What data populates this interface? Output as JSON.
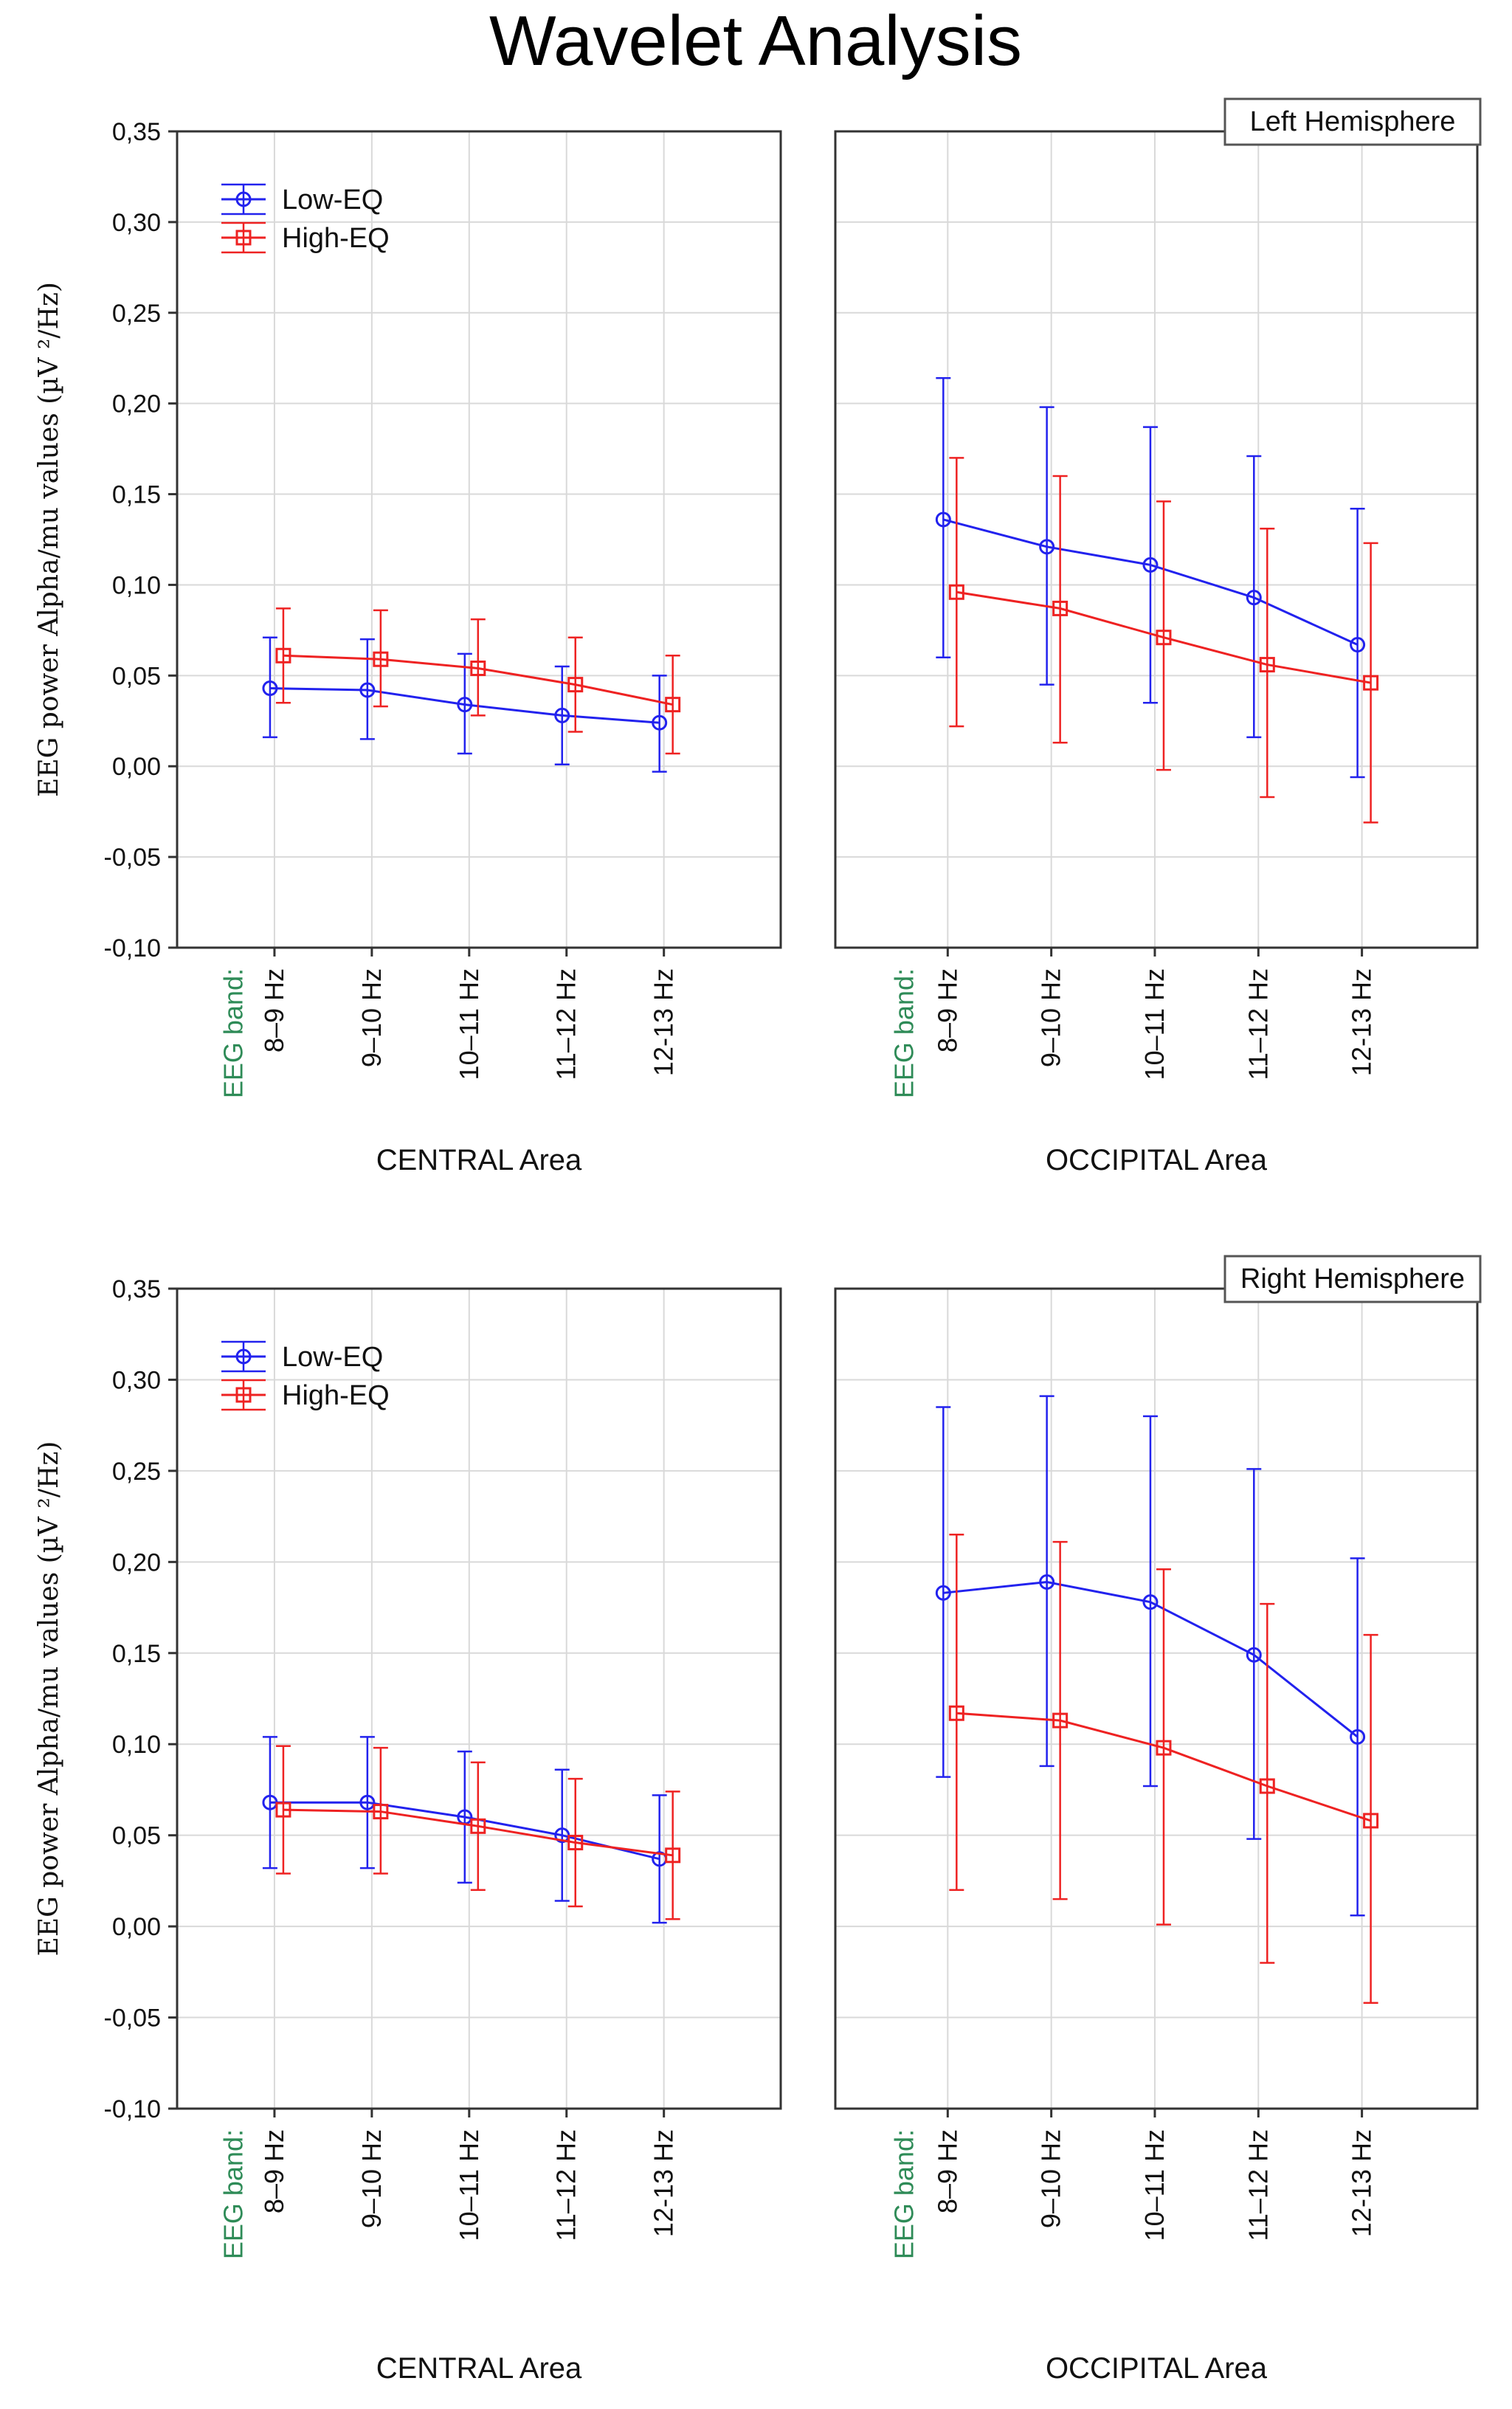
{
  "title": "Wavelet Analysis",
  "y_axis_label": "EEG power Alpha/mu values (µV ²/Hz)",
  "band_label": "EEG band:",
  "legend": {
    "low": "Low-EQ",
    "high": "High-EQ"
  },
  "colors": {
    "low": "#2222ee",
    "high": "#ee2222",
    "grid": "#d9d9d9",
    "axis": "#333333"
  },
  "y_tick_labels": [
    "0,35",
    "0,30",
    "0,25",
    "0,20",
    "0,15",
    "0,10",
    "0,05",
    "0,00",
    "-0,05",
    "-0,10"
  ],
  "chart_data": [
    {
      "type": "line",
      "panel": "left-hemisphere-central",
      "xlabel": "CENTRAL Area",
      "ylim": [
        -0.1,
        0.35
      ],
      "categories": [
        "8–9 Hz",
        "9–10 Hz",
        "10–11 Hz",
        "11–12 Hz",
        "12-13 Hz"
      ],
      "series": [
        {
          "name": "Low-EQ",
          "values": [
            0.043,
            0.042,
            0.034,
            0.028,
            0.024
          ],
          "lower": [
            0.016,
            0.015,
            0.007,
            0.001,
            -0.003
          ],
          "upper": [
            0.071,
            0.07,
            0.062,
            0.055,
            0.05
          ]
        },
        {
          "name": "High-EQ",
          "values": [
            0.061,
            0.059,
            0.054,
            0.045,
            0.034
          ],
          "lower": [
            0.035,
            0.033,
            0.028,
            0.019,
            0.007
          ],
          "upper": [
            0.087,
            0.086,
            0.081,
            0.071,
            0.061
          ]
        }
      ]
    },
    {
      "type": "line",
      "panel": "left-hemisphere-occipital",
      "xlabel": "OCCIPITAL Area",
      "hemisphere": "Left Hemisphere",
      "ylim": [
        -0.1,
        0.35
      ],
      "categories": [
        "8–9 Hz",
        "9–10 Hz",
        "10–11 Hz",
        "11–12 Hz",
        "12-13 Hz"
      ],
      "series": [
        {
          "name": "Low-EQ",
          "values": [
            0.136,
            0.121,
            0.111,
            0.093,
            0.067
          ],
          "lower": [
            0.06,
            0.045,
            0.035,
            0.016,
            -0.006
          ],
          "upper": [
            0.214,
            0.198,
            0.187,
            0.171,
            0.142
          ]
        },
        {
          "name": "High-EQ",
          "values": [
            0.096,
            0.087,
            0.071,
            0.056,
            0.046
          ],
          "lower": [
            0.022,
            0.013,
            -0.002,
            -0.017,
            -0.031
          ],
          "upper": [
            0.17,
            0.16,
            0.146,
            0.131,
            0.123
          ]
        }
      ]
    },
    {
      "type": "line",
      "panel": "right-hemisphere-central",
      "xlabel": "CENTRAL Area",
      "ylim": [
        -0.1,
        0.35
      ],
      "categories": [
        "8–9 Hz",
        "9–10 Hz",
        "10–11 Hz",
        "11–12 Hz",
        "12-13 Hz"
      ],
      "series": [
        {
          "name": "Low-EQ",
          "values": [
            0.068,
            0.068,
            0.06,
            0.05,
            0.037
          ],
          "lower": [
            0.032,
            0.032,
            0.024,
            0.014,
            0.002
          ],
          "upper": [
            0.104,
            0.104,
            0.096,
            0.086,
            0.072
          ]
        },
        {
          "name": "High-EQ",
          "values": [
            0.064,
            0.063,
            0.055,
            0.046,
            0.039
          ],
          "lower": [
            0.029,
            0.029,
            0.02,
            0.011,
            0.004
          ],
          "upper": [
            0.099,
            0.098,
            0.09,
            0.081,
            0.074
          ]
        }
      ]
    },
    {
      "type": "line",
      "panel": "right-hemisphere-occipital",
      "xlabel": "OCCIPITAL Area",
      "hemisphere": "Right Hemisphere",
      "ylim": [
        -0.1,
        0.35
      ],
      "categories": [
        "8–9 Hz",
        "9–10 Hz",
        "10–11 Hz",
        "11–12 Hz",
        "12-13 Hz"
      ],
      "series": [
        {
          "name": "Low-EQ",
          "values": [
            0.183,
            0.189,
            0.178,
            0.149,
            0.104
          ],
          "lower": [
            0.082,
            0.088,
            0.077,
            0.048,
            0.006
          ],
          "upper": [
            0.285,
            0.291,
            0.28,
            0.251,
            0.202
          ]
        },
        {
          "name": "High-EQ",
          "values": [
            0.117,
            0.113,
            0.098,
            0.077,
            0.058
          ],
          "lower": [
            0.02,
            0.015,
            0.001,
            -0.02,
            -0.042
          ],
          "upper": [
            0.215,
            0.211,
            0.196,
            0.177,
            0.16
          ]
        }
      ]
    }
  ]
}
